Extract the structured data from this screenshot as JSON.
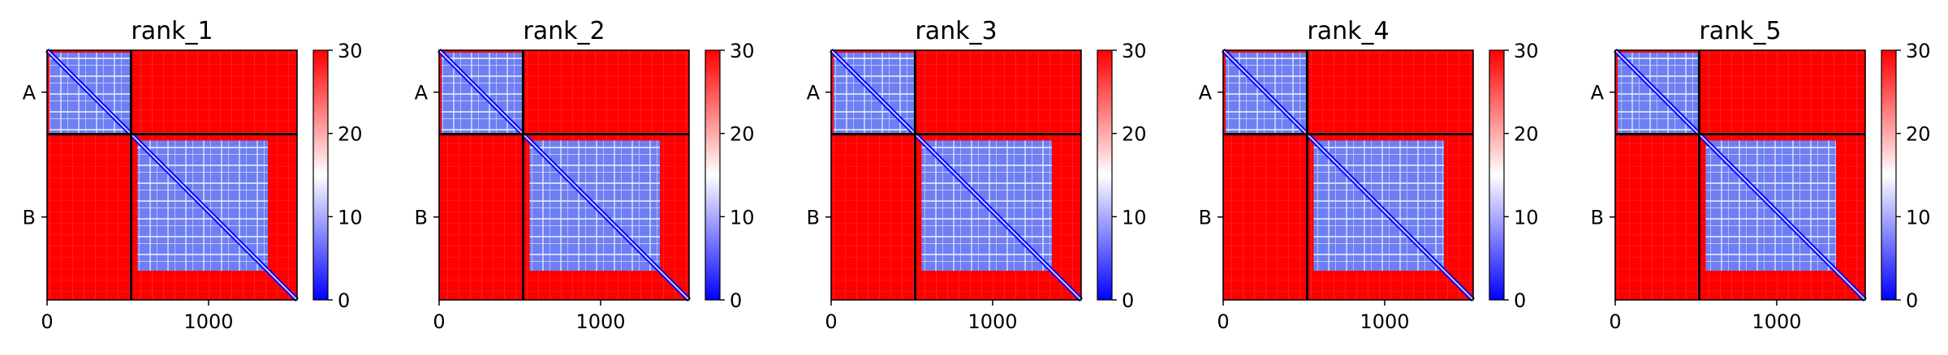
{
  "chart_data": {
    "type": "heatmap",
    "colormap": {
      "name": "bwr",
      "low": "#0000ff",
      "mid": "#ffffff",
      "high": "#ff0000"
    },
    "vmin": 0,
    "vmax": 30,
    "colorbar_ticks": [
      0,
      10,
      20,
      30
    ],
    "axis_range": [
      0,
      1548
    ],
    "x_ticks": [
      0,
      1000
    ],
    "chain_boundary": 520,
    "chains": [
      {
        "label": "A",
        "start": 0,
        "end": 520
      },
      {
        "label": "B",
        "start": 520,
        "end": 1548
      }
    ],
    "panels": [
      {
        "title": "rank_1"
      },
      {
        "title": "rank_2"
      },
      {
        "title": "rank_3"
      },
      {
        "title": "rank_4"
      },
      {
        "title": "rank_5"
      }
    ]
  }
}
